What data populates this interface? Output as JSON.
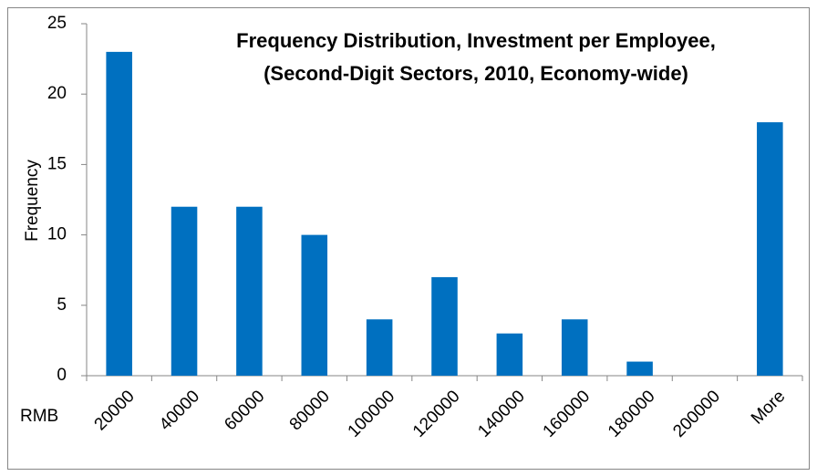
{
  "chart_data": {
    "type": "bar",
    "title": [
      "Frequency Distribution, Investment per Employee,",
      "(Second-Digit Sectors, 2010, Economy-wide)"
    ],
    "x_label": "RMB",
    "y_label": "Frequency",
    "categories": [
      "20000",
      "40000",
      "60000",
      "80000",
      "100000",
      "120000",
      "140000",
      "160000",
      "180000",
      "200000",
      "More"
    ],
    "values": [
      23,
      12,
      12,
      10,
      4,
      7,
      3,
      4,
      1,
      0,
      18
    ],
    "color": "#0070c0",
    "ylim": [
      0,
      25
    ],
    "yticks": [
      0,
      5,
      10,
      15,
      20,
      25
    ],
    "grid": false
  }
}
